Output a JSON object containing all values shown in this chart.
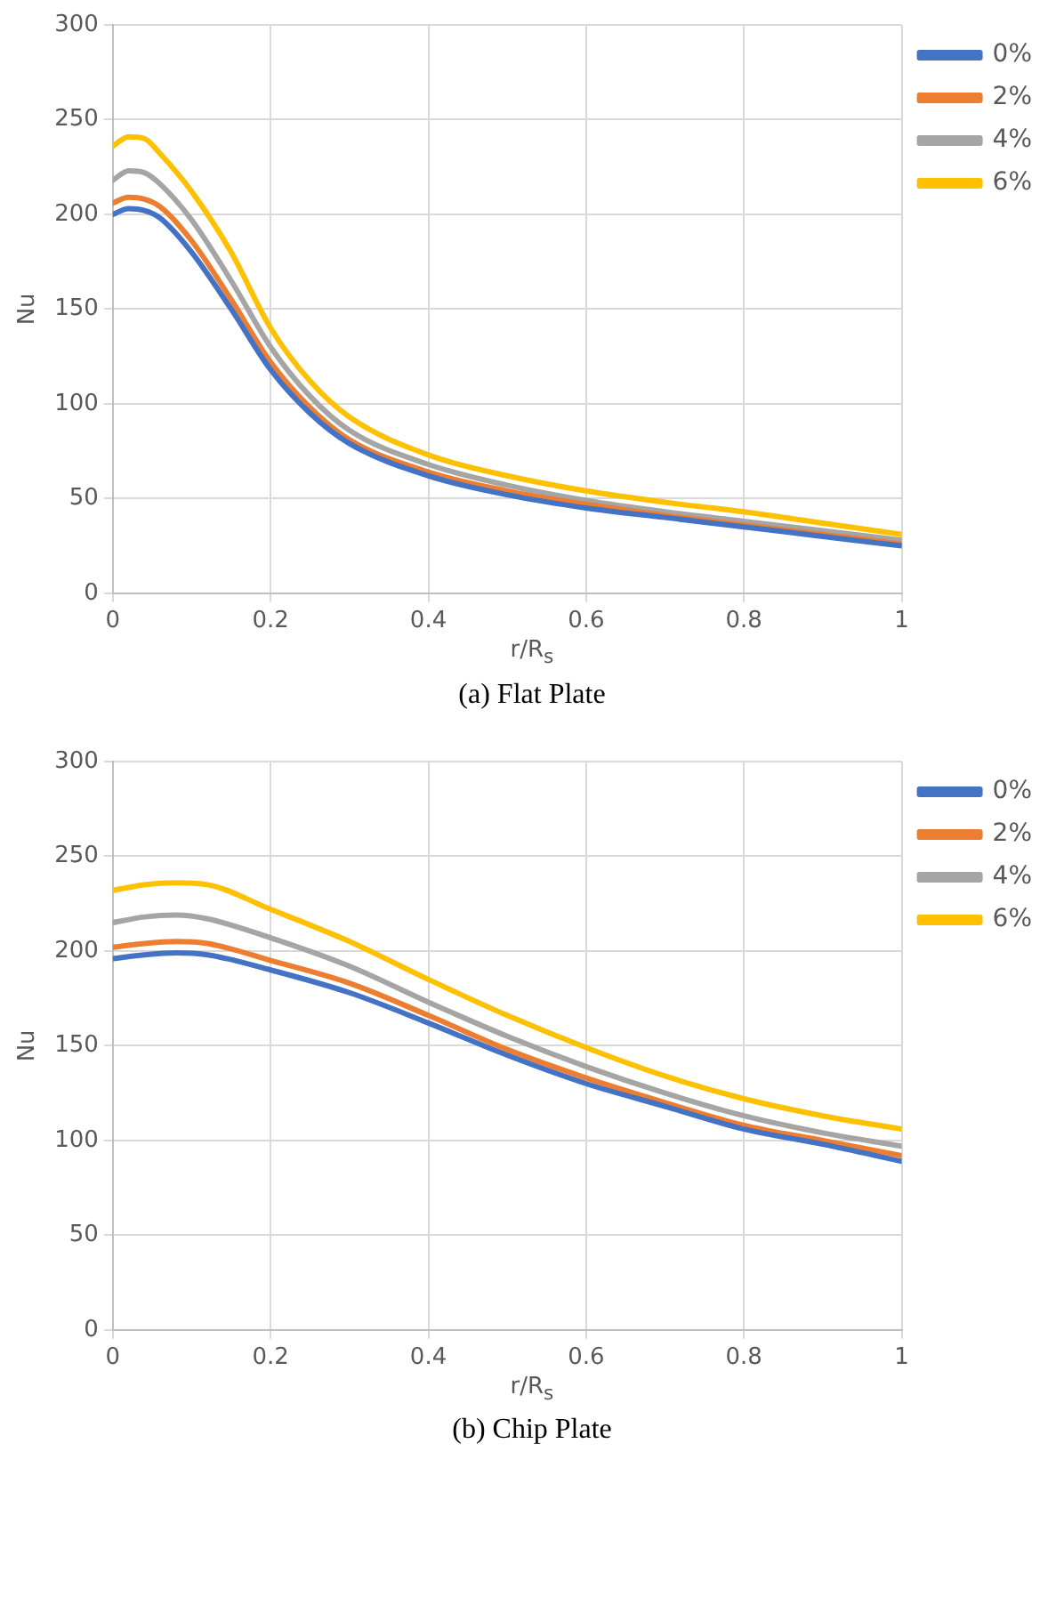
{
  "chart_data": [
    {
      "type": "line",
      "title": "(a) Flat Plate",
      "xlabel": "r/R$_{s}$",
      "ylabel": "Nu",
      "x": [
        0,
        0.02,
        0.04,
        0.06,
        0.1,
        0.15,
        0.2,
        0.25,
        0.3,
        0.4,
        0.5,
        0.6,
        0.7,
        0.8,
        0.9,
        1.0
      ],
      "series": [
        {
          "name": "0%",
          "color": "#4472c4",
          "values": [
            200,
            203,
            202,
            198,
            180,
            150,
            118,
            95,
            79,
            62,
            52,
            45,
            40,
            35,
            30,
            25
          ]
        },
        {
          "name": "2%",
          "color": "#ed7d31",
          "values": [
            206,
            209,
            208,
            204,
            186,
            155,
            122,
            98,
            81,
            64,
            54,
            47,
            41,
            36,
            31,
            26
          ]
        },
        {
          "name": "4%",
          "color": "#a5a5a5",
          "values": [
            218,
            223,
            222,
            216,
            197,
            165,
            130,
            104,
            86,
            68,
            57,
            49,
            43,
            38,
            33,
            28
          ]
        },
        {
          "name": "6%",
          "color": "#ffc000",
          "values": [
            236,
            241,
            240,
            232,
            212,
            180,
            140,
            112,
            93,
            73,
            62,
            54,
            48,
            43,
            37,
            31
          ]
        }
      ],
      "xlim": [
        0,
        1
      ],
      "xticks": [
        0,
        0.2,
        0.4,
        0.6,
        0.8,
        1
      ],
      "ylim": [
        0,
        300
      ],
      "yticks": [
        0,
        50,
        100,
        150,
        200,
        250,
        300
      ],
      "grid": true,
      "legend": "top right",
      "marker": "none",
      "line_style": "solid"
    },
    {
      "type": "line",
      "title": "(b) Chip Plate",
      "xlabel": "r/R$_{s}$",
      "ylabel": "Nu",
      "x": [
        0,
        0.04,
        0.08,
        0.12,
        0.2,
        0.3,
        0.4,
        0.5,
        0.6,
        0.7,
        0.8,
        0.9,
        1.0
      ],
      "series": [
        {
          "name": "0%",
          "color": "#4472c4",
          "values": [
            196,
            198,
            199,
            198,
            190,
            178,
            162,
            145,
            130,
            118,
            106,
            98,
            89
          ]
        },
        {
          "name": "2%",
          "color": "#ed7d31",
          "values": [
            202,
            204,
            205,
            204,
            195,
            183,
            166,
            148,
            133,
            120,
            108,
            100,
            92
          ]
        },
        {
          "name": "4%",
          "color": "#a5a5a5",
          "values": [
            215,
            218,
            219,
            217,
            207,
            192,
            173,
            155,
            139,
            125,
            113,
            104,
            97
          ]
        },
        {
          "name": "6%",
          "color": "#ffc000",
          "values": [
            232,
            235,
            236,
            235,
            222,
            205,
            185,
            166,
            149,
            134,
            122,
            113,
            106
          ]
        }
      ],
      "xlim": [
        0,
        1
      ],
      "xticks": [
        0,
        0.2,
        0.4,
        0.6,
        0.8,
        1
      ],
      "ylim": [
        0,
        300
      ],
      "yticks": [
        0,
        50,
        100,
        150,
        200,
        250,
        300
      ],
      "grid": true,
      "legend": "top right",
      "marker": "none",
      "line_style": "solid"
    }
  ]
}
